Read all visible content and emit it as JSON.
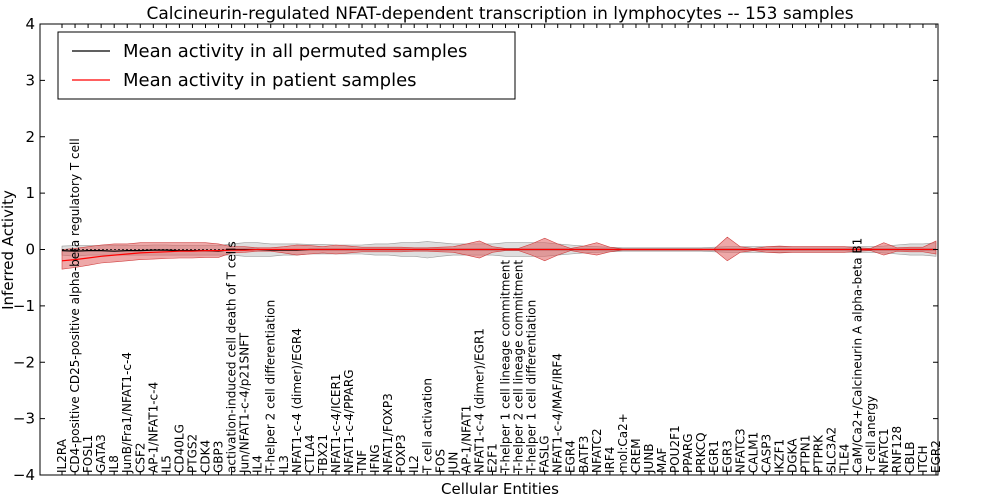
{
  "chart_data": {
    "type": "line",
    "title": "Calcineurin-regulated NFAT-dependent transcription in lymphocytes -- 153 samples",
    "xlabel": "Cellular Entities",
    "ylabel": "Inferred Activity",
    "ylim": [
      -4,
      4
    ],
    "yticks": [
      "4",
      "3",
      "2",
      "1",
      "0",
      "−1",
      "−2",
      "−3",
      "−4"
    ],
    "legend_position": "top-left",
    "categories": [
      "IL2RA",
      "CD4-positive CD25-positive alpha-beta regulatory T cell",
      "FOSL1",
      "GATA3",
      "IL8",
      "JunB/Fra1/NFAT1-c-4",
      "CSF2",
      "AP-1/NFAT1-c-4",
      "IL5",
      "CD40LG",
      "PTGS2",
      "CDK4",
      "GBP3",
      "activation-induced cell death of T cells",
      "Jun/NFAT1-c-4/p21SNFT",
      "IL4",
      "T-helper 2 cell differentiation",
      "IL3",
      "NFAT1-c-4 (dimer)/EGR4",
      "CTLA4",
      "TBX21",
      "NFAT1-c-4/ICER1",
      "NFAT1-c-4/PPARG",
      "TNF",
      "IFNG",
      "NFAT1/FOXP3",
      "FOXP3",
      "IL2",
      "T cell activation",
      "FOS",
      "JUN",
      "AP-1/NFAT1",
      "NFAT1-c-4 (dimer)/EGR1",
      "E2F1",
      "T-helper 1 cell lineage commitment",
      "T-helper 2 cell lineage commitment",
      "T-helper 1 cell differentiation",
      "FASLG",
      "NFAT1-c-4/MAF/IRF4",
      "EGR4",
      "BATF3",
      "NFATC2",
      "IRF4",
      "mol:Ca2+",
      "CREM",
      "JUNB",
      "MAF",
      "POU2F1",
      "PPARG",
      "PRKCQ",
      "EGR1",
      "EGR3",
      "NFATC3",
      "CALM1",
      "CASP3",
      "IKZF1",
      "DGKA",
      "PTPN1",
      "PTPRK",
      "SLC3A2",
      "TLE4",
      "CaM/Ca2+/Calcineurin A alpha-beta B1",
      "T cell anergy",
      "NFATC1",
      "RNF128",
      "CBLB",
      "ITCH",
      "EGR2"
    ],
    "series": [
      {
        "name": "Mean activity in all permuted samples",
        "color": "#000000",
        "values": [
          -0.02,
          -0.03,
          -0.02,
          -0.02,
          -0.03,
          -0.02,
          -0.02,
          -0.01,
          -0.01,
          -0.02,
          -0.02,
          -0.02,
          -0.03,
          0.0,
          0.0,
          0.0,
          -0.01,
          -0.01,
          -0.01,
          0.0,
          0.0,
          0.0,
          0.0,
          0.0,
          0.0,
          0.0,
          0.0,
          0.0,
          0.0,
          0.0,
          0.0,
          0.0,
          0.0,
          0.0,
          0.0,
          0.0,
          0.0,
          0.0,
          0.0,
          0.0,
          0.0,
          0.0,
          0.0,
          0.0,
          0.0,
          0.0,
          0.0,
          0.0,
          0.0,
          0.0,
          0.0,
          0.0,
          0.0,
          0.0,
          0.0,
          0.0,
          0.0,
          0.0,
          0.0,
          0.0,
          0.0,
          0.0,
          0.0,
          0.0,
          0.0,
          0.0,
          0.0,
          0.0
        ],
        "lower": [
          -0.1,
          -0.12,
          -0.1,
          -0.1,
          -0.1,
          -0.1,
          -0.1,
          -0.1,
          -0.1,
          -0.1,
          -0.1,
          -0.1,
          -0.1,
          -0.1,
          -0.12,
          -0.12,
          -0.12,
          -0.1,
          -0.1,
          -0.08,
          -0.08,
          -0.08,
          -0.08,
          -0.08,
          -0.1,
          -0.1,
          -0.12,
          -0.12,
          -0.15,
          -0.12,
          -0.1,
          -0.1,
          -0.1,
          -0.1,
          -0.12,
          -0.12,
          -0.12,
          -0.12,
          -0.1,
          -0.08,
          -0.06,
          -0.05,
          -0.04,
          -0.03,
          -0.03,
          -0.03,
          -0.03,
          -0.03,
          -0.03,
          -0.03,
          -0.04,
          -0.05,
          -0.05,
          -0.05,
          -0.05,
          -0.05,
          -0.05,
          -0.05,
          -0.05,
          -0.05,
          -0.05,
          -0.05,
          -0.05,
          -0.06,
          -0.08,
          -0.1,
          -0.1,
          -0.12
        ],
        "upper": [
          0.06,
          0.07,
          0.07,
          0.07,
          0.07,
          0.07,
          0.07,
          0.08,
          0.08,
          0.07,
          0.07,
          0.07,
          0.07,
          0.1,
          0.12,
          0.12,
          0.1,
          0.1,
          0.1,
          0.09,
          0.09,
          0.08,
          0.08,
          0.08,
          0.1,
          0.1,
          0.12,
          0.12,
          0.14,
          0.12,
          0.1,
          0.1,
          0.1,
          0.1,
          0.12,
          0.12,
          0.12,
          0.12,
          0.1,
          0.08,
          0.06,
          0.05,
          0.04,
          0.03,
          0.03,
          0.03,
          0.03,
          0.03,
          0.03,
          0.03,
          0.04,
          0.05,
          0.05,
          0.05,
          0.05,
          0.05,
          0.05,
          0.05,
          0.05,
          0.05,
          0.05,
          0.05,
          0.05,
          0.06,
          0.08,
          0.1,
          0.1,
          0.12
        ]
      },
      {
        "name": "Mean activity in patient samples",
        "color": "#ff0000",
        "fill": "#e06060",
        "values": [
          -0.2,
          -0.18,
          -0.15,
          -0.12,
          -0.1,
          -0.08,
          -0.06,
          -0.05,
          -0.04,
          -0.03,
          -0.03,
          -0.02,
          -0.02,
          -0.01,
          -0.01,
          0.0,
          0.0,
          0.0,
          0.0,
          0.0,
          0.0,
          0.0,
          0.0,
          0.0,
          0.0,
          0.0,
          0.0,
          0.0,
          0.0,
          0.0,
          0.0,
          0.0,
          0.0,
          0.0,
          0.0,
          0.0,
          0.0,
          0.0,
          0.0,
          0.0,
          0.0,
          0.0,
          0.0,
          0.0,
          0.0,
          0.0,
          0.0,
          0.0,
          0.0,
          0.0,
          0.0,
          0.0,
          0.0,
          0.0,
          0.0,
          0.0,
          0.0,
          0.0,
          0.0,
          0.0,
          0.0,
          0.0,
          0.0,
          0.0,
          0.0,
          0.0,
          0.0,
          0.0
        ],
        "lower": [
          -0.35,
          -0.32,
          -0.28,
          -0.24,
          -0.22,
          -0.2,
          -0.18,
          -0.17,
          -0.16,
          -0.15,
          -0.15,
          -0.14,
          -0.14,
          -0.06,
          -0.05,
          -0.03,
          -0.03,
          -0.06,
          -0.1,
          -0.08,
          -0.06,
          -0.08,
          -0.06,
          -0.04,
          -0.04,
          -0.04,
          -0.04,
          -0.03,
          -0.03,
          -0.04,
          -0.05,
          -0.1,
          -0.15,
          -0.05,
          -0.02,
          -0.02,
          -0.1,
          -0.2,
          -0.1,
          -0.02,
          -0.06,
          -0.1,
          -0.04,
          -0.01,
          -0.01,
          -0.01,
          -0.01,
          -0.01,
          -0.01,
          -0.01,
          -0.01,
          -0.2,
          -0.05,
          -0.02,
          -0.05,
          -0.06,
          -0.05,
          -0.05,
          -0.05,
          -0.05,
          -0.05,
          -0.03,
          -0.02,
          -0.1,
          -0.03,
          -0.04,
          -0.04,
          -0.08
        ],
        "upper": [
          0.0,
          0.02,
          0.05,
          0.08,
          0.1,
          0.1,
          0.12,
          0.12,
          0.12,
          0.12,
          0.12,
          0.12,
          0.1,
          0.05,
          0.05,
          0.03,
          0.03,
          0.05,
          0.08,
          0.07,
          0.05,
          0.08,
          0.06,
          0.04,
          0.04,
          0.04,
          0.04,
          0.03,
          0.03,
          0.04,
          0.05,
          0.1,
          0.15,
          0.05,
          0.02,
          0.02,
          0.1,
          0.2,
          0.1,
          0.02,
          0.06,
          0.12,
          0.04,
          0.01,
          0.01,
          0.01,
          0.01,
          0.01,
          0.01,
          0.01,
          0.01,
          0.22,
          0.05,
          0.02,
          0.05,
          0.06,
          0.05,
          0.05,
          0.05,
          0.05,
          0.05,
          0.03,
          0.02,
          0.12,
          0.03,
          0.04,
          0.04,
          0.15
        ]
      }
    ]
  }
}
